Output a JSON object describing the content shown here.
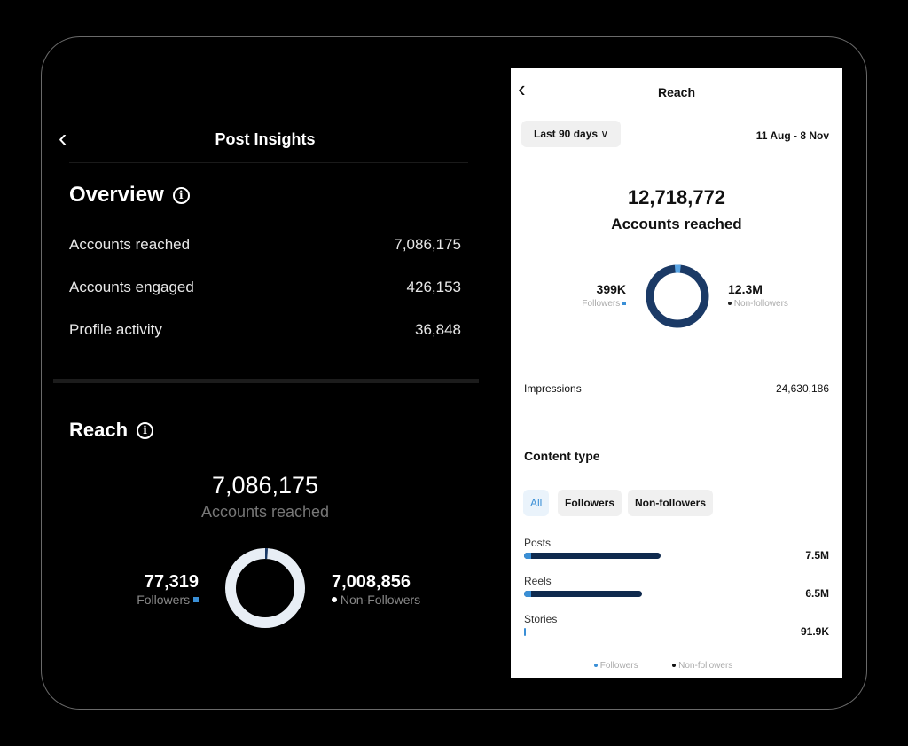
{
  "left": {
    "title": "Post Insights",
    "overview": {
      "heading": "Overview",
      "rows": [
        {
          "label": "Accounts reached",
          "value": "7,086,175"
        },
        {
          "label": "Accounts engaged",
          "value": "426,153"
        },
        {
          "label": "Profile activity",
          "value": "36,848"
        }
      ]
    },
    "reach": {
      "heading": "Reach",
      "total": "7,086,175",
      "total_label": "Accounts reached",
      "followers": {
        "value": "77,319",
        "label": "Followers",
        "share": 0.011
      },
      "non_followers": {
        "value": "7,008,856",
        "label": "Non-Followers"
      }
    }
  },
  "right": {
    "title": "Reach",
    "range": "Last 90 days",
    "dates": "11 Aug - 8 Nov",
    "total": "12,718,772",
    "total_label": "Accounts reached",
    "followers": {
      "value": "399K",
      "label": "Followers",
      "share": 0.031
    },
    "non_followers": {
      "value": "12.3M",
      "label": "Non-followers"
    },
    "impressions": {
      "label": "Impressions",
      "value": "24,630,186"
    },
    "content_type": {
      "heading": "Content type",
      "filters": [
        "All",
        "Followers",
        "Non-followers"
      ],
      "active": "All",
      "items": [
        {
          "label": "Posts",
          "value": "7.5M",
          "amount": 7.5
        },
        {
          "label": "Reels",
          "value": "6.5M",
          "amount": 6.5
        },
        {
          "label": "Stories",
          "value": "91.9K",
          "amount": 0.0919
        }
      ],
      "legend": [
        "Followers",
        "Non-followers"
      ]
    }
  },
  "colors": {
    "followers": "#3a8fd6",
    "non_followers_dark": "#0f2a4e",
    "donut_light": "#e8eef5"
  }
}
